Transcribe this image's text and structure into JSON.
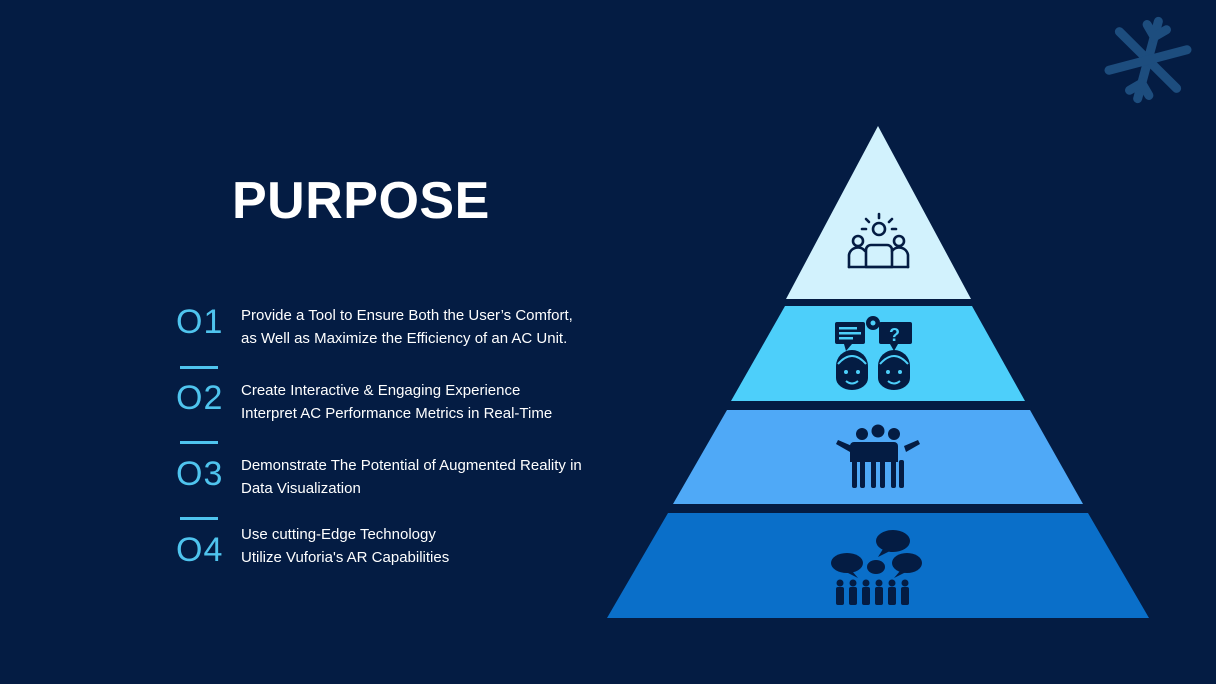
{
  "slide": {
    "title": "PURPOSE",
    "items": [
      {
        "number": "O1",
        "line1": "Provide a Tool to Ensure Both the User’s Comfort,",
        "line2": "as Well as Maximize the Efficiency of an AC Unit."
      },
      {
        "number": "O2",
        "line1": "Create Interactive & Engaging Experience",
        "line2": "Interpret AC Performance Metrics in Real-Time"
      },
      {
        "number": "O3",
        "line1": "Demonstrate The Potential of Augmented Reality in",
        "line2": "Data Visualization"
      },
      {
        "number": "O4",
        "line1": "Use cutting-Edge Technology",
        "line2": "Utilize Vuforia's AR Capabilities"
      }
    ]
  },
  "colors": {
    "background": "#041c43",
    "accent": "#4fc4ee",
    "tier1": "#d2f2fd",
    "tier2": "#4dcffa",
    "tier3": "#4fa9f7",
    "tier4": "#0a6fc9"
  },
  "icons": {
    "tier1": "team-leader-icon",
    "tier2": "people-thinking-icon",
    "tier3": "group-hug-icon",
    "tier4": "crowd-discussion-icon",
    "corner": "snowflake-icon"
  }
}
